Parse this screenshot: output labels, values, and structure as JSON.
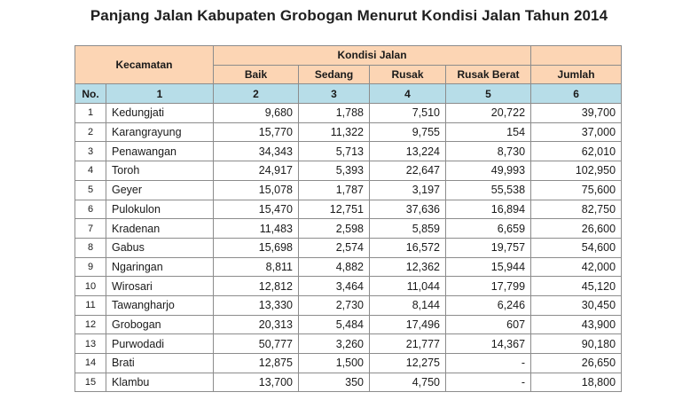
{
  "title": "Panjang Jalan Kabupaten Grobogan Menurut Kondisi Jalan Tahun 2014",
  "header": {
    "kecamatan": "Kecamatan",
    "kondisi": "Kondisi Jalan",
    "baik": "Baik",
    "sedang": "Sedang",
    "rusak": "Rusak",
    "rusak_berat": "Rusak Berat",
    "jumlah": "Jumlah"
  },
  "index_row": [
    "No.",
    "1",
    "2",
    "3",
    "4",
    "5",
    "6"
  ],
  "rows": [
    {
      "no": "1",
      "kecamatan": "Kedungjati",
      "baik": "9,680",
      "sedang": "1,788",
      "rusak": "7,510",
      "rusak_berat": "20,722",
      "jumlah": "39,700"
    },
    {
      "no": "2",
      "kecamatan": "Karangrayung",
      "baik": "15,770",
      "sedang": "11,322",
      "rusak": "9,755",
      "rusak_berat": "154",
      "jumlah": "37,000"
    },
    {
      "no": "3",
      "kecamatan": "Penawangan",
      "baik": "34,343",
      "sedang": "5,713",
      "rusak": "13,224",
      "rusak_berat": "8,730",
      "jumlah": "62,010"
    },
    {
      "no": "4",
      "kecamatan": "Toroh",
      "baik": "24,917",
      "sedang": "5,393",
      "rusak": "22,647",
      "rusak_berat": "49,993",
      "jumlah": "102,950"
    },
    {
      "no": "5",
      "kecamatan": "Geyer",
      "baik": "15,078",
      "sedang": "1,787",
      "rusak": "3,197",
      "rusak_berat": "55,538",
      "jumlah": "75,600"
    },
    {
      "no": "6",
      "kecamatan": "Pulokulon",
      "baik": "15,470",
      "sedang": "12,751",
      "rusak": "37,636",
      "rusak_berat": "16,894",
      "jumlah": "82,750"
    },
    {
      "no": "7",
      "kecamatan": "Kradenan",
      "baik": "11,483",
      "sedang": "2,598",
      "rusak": "5,859",
      "rusak_berat": "6,659",
      "jumlah": "26,600"
    },
    {
      "no": "8",
      "kecamatan": "Gabus",
      "baik": "15,698",
      "sedang": "2,574",
      "rusak": "16,572",
      "rusak_berat": "19,757",
      "jumlah": "54,600"
    },
    {
      "no": "9",
      "kecamatan": "Ngaringan",
      "baik": "8,811",
      "sedang": "4,882",
      "rusak": "12,362",
      "rusak_berat": "15,944",
      "jumlah": "42,000"
    },
    {
      "no": "10",
      "kecamatan": "Wirosari",
      "baik": "12,812",
      "sedang": "3,464",
      "rusak": "11,044",
      "rusak_berat": "17,799",
      "jumlah": "45,120"
    },
    {
      "no": "11",
      "kecamatan": "Tawangharjo",
      "baik": "13,330",
      "sedang": "2,730",
      "rusak": "8,144",
      "rusak_berat": "6,246",
      "jumlah": "30,450"
    },
    {
      "no": "12",
      "kecamatan": "Grobogan",
      "baik": "20,313",
      "sedang": "5,484",
      "rusak": "17,496",
      "rusak_berat": "607",
      "jumlah": "43,900"
    },
    {
      "no": "13",
      "kecamatan": "Purwodadi",
      "baik": "50,777",
      "sedang": "3,260",
      "rusak": "21,777",
      "rusak_berat": "14,367",
      "jumlah": "90,180"
    },
    {
      "no": "14",
      "kecamatan": "Brati",
      "baik": "12,875",
      "sedang": "1,500",
      "rusak": "12,275",
      "rusak_berat": "-",
      "jumlah": "26,650"
    },
    {
      "no": "15",
      "kecamatan": "Klambu",
      "baik": "13,700",
      "sedang": "350",
      "rusak": "4,750",
      "rusak_berat": "-",
      "jumlah": "18,800"
    }
  ],
  "colors": {
    "header_bg": "#fcd5b4",
    "index_row_bg": "#b7dde8",
    "border": "#8c8c8c"
  }
}
